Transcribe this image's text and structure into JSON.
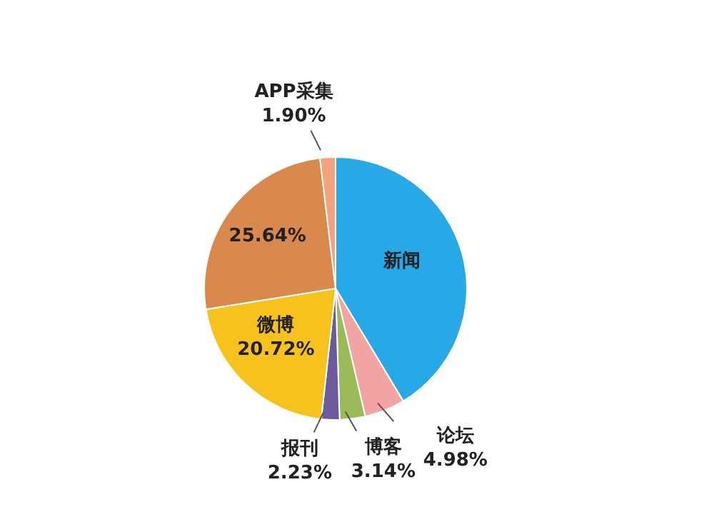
{
  "chart_data": {
    "type": "pie",
    "categories": [
      "新闻",
      "论坛",
      "博客",
      "报刊",
      "微博",
      null,
      "APP采集"
    ],
    "values": [
      41.39,
      4.98,
      3.14,
      2.23,
      20.72,
      25.64,
      1.9
    ],
    "value_labels": [
      null,
      "4.98%",
      "3.14%",
      "2.23%",
      "20.72%",
      "25.64%",
      "1.90%"
    ],
    "colors": [
      "#27a9e8",
      "#f2a3a3",
      "#9bbb59",
      "#6b5b9a",
      "#f8c21c",
      "#d9894c",
      "#f4a27e"
    ]
  }
}
